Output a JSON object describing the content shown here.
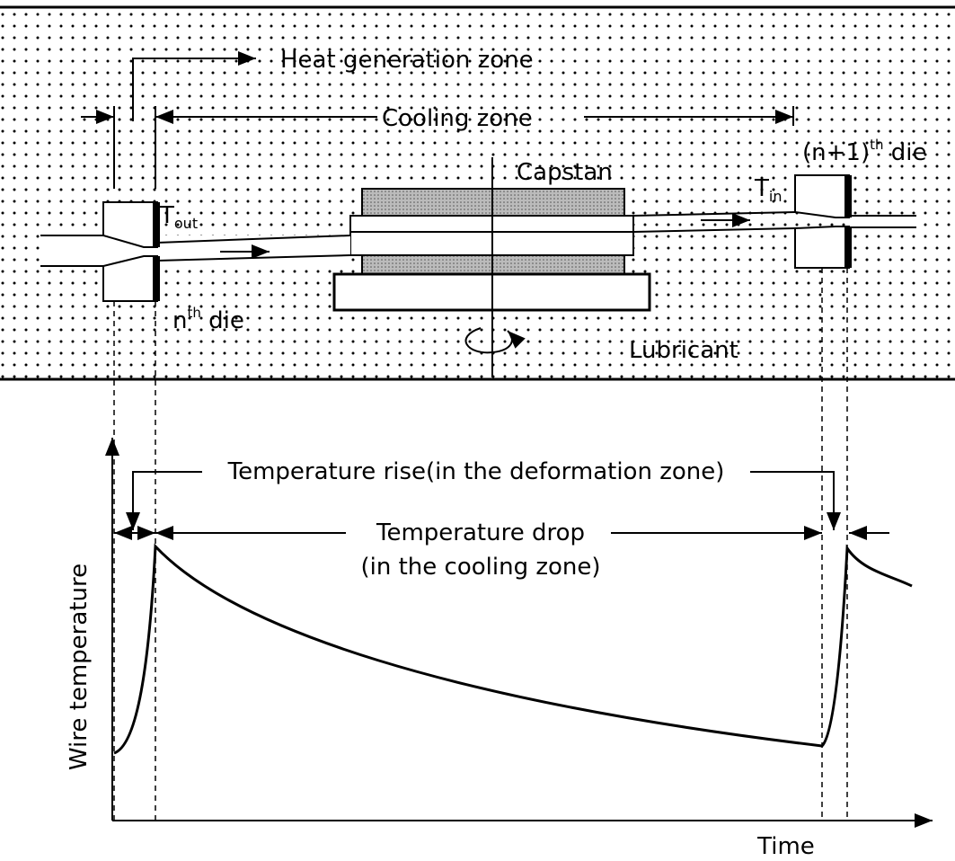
{
  "top": {
    "heat_generation_zone": "Heat generation zone",
    "cooling_zone": "Cooling zone",
    "capstan": "Capstan",
    "lubricant": "Lubricant",
    "t_out": {
      "base": "T",
      "sub": "out"
    },
    "t_in": {
      "base": "T",
      "sub": "in"
    },
    "nth_die": {
      "base": "n",
      "sup": "th",
      "rest": " die"
    },
    "next_die": {
      "base": "(n+1)",
      "sup": "th",
      "rest": " die"
    }
  },
  "bottom": {
    "y_axis_label": "Wire temperature",
    "x_axis_label": "Time",
    "temperature_rise": "Temperature rise(in the deformation zone)",
    "temperature_drop": "Temperature drop",
    "temperature_drop_note": "(in the cooling zone)"
  }
}
